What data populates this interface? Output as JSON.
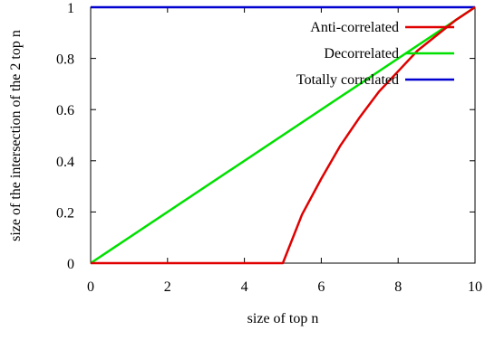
{
  "chart_data": {
    "type": "line",
    "xlabel": "size of top n",
    "ylabel": "size of the intersection of the 2 top n",
    "xlim": [
      0,
      10
    ],
    "ylim": [
      0,
      1
    ],
    "xticks": [
      0,
      2,
      4,
      6,
      8,
      10
    ],
    "xtick_labels": [
      "0",
      "2",
      "4",
      "6",
      "8",
      "10"
    ],
    "yticks": [
      0,
      0.2,
      0.4,
      0.6,
      0.8,
      1
    ],
    "ytick_labels": [
      "0",
      "0.2",
      "0.4",
      "0.6",
      "0.8",
      "1"
    ],
    "grid": false,
    "legend_position": "top-right",
    "series": [
      {
        "name": "Anti-correlated",
        "color": "#e00000",
        "x": [
          0,
          5,
          5.5,
          6,
          6.5,
          7,
          7.5,
          8,
          8.5,
          9,
          9.5,
          10
        ],
        "y": [
          0,
          0,
          0.19,
          0.33,
          0.46,
          0.57,
          0.67,
          0.75,
          0.83,
          0.89,
          0.95,
          1
        ]
      },
      {
        "name": "Decorrelated",
        "color": "#00e000",
        "x": [
          0,
          10
        ],
        "y": [
          0,
          1
        ]
      },
      {
        "name": "Totally correlated",
        "color": "#0000d0",
        "x": [
          0,
          10
        ],
        "y": [
          1,
          1
        ]
      }
    ]
  }
}
